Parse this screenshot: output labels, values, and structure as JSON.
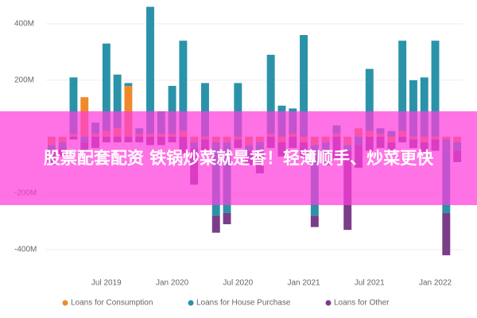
{
  "chart_data": {
    "type": "stacked_bar",
    "categories": [
      null,
      null,
      null,
      null,
      null,
      "Jul 2019",
      null,
      null,
      null,
      null,
      null,
      "Jan 2020",
      null,
      null,
      null,
      null,
      null,
      "Jul 2020",
      null,
      null,
      null,
      null,
      null,
      "Jan 2021",
      null,
      null,
      null,
      null,
      null,
      "Jul 2021",
      null,
      null,
      null,
      null,
      null,
      "Jan 2022",
      null,
      null
    ],
    "series": [
      {
        "name": "Loans for Consumption",
        "color": "#ee8a2c",
        "values": [
          -30,
          -20,
          10,
          140,
          10,
          20,
          30,
          180,
          10,
          10,
          10,
          10,
          20,
          -20,
          -10,
          -20,
          -20,
          -10,
          -30,
          -20,
          10,
          -20,
          10,
          -20,
          -30,
          -20,
          10,
          -30,
          30,
          20,
          10,
          -20,
          20,
          -10,
          -20,
          -10,
          -10,
          -20
        ]
      },
      {
        "name": "Loans for House Purchase",
        "color": "#2a93a9",
        "values": [
          -30,
          -20,
          200,
          -20,
          40,
          310,
          190,
          10,
          20,
          450,
          80,
          170,
          320,
          -20,
          190,
          -260,
          -250,
          190,
          -20,
          -30,
          280,
          110,
          90,
          360,
          -250,
          -30,
          30,
          -20,
          -30,
          220,
          20,
          20,
          320,
          200,
          210,
          340,
          -260,
          -30
        ]
      },
      {
        "name": "Loans for Other",
        "color": "#7a3d87",
        "values": [
          -40,
          -30,
          -10,
          -30,
          -40,
          -20,
          -20,
          -20,
          -20,
          -30,
          -30,
          -20,
          -60,
          -130,
          -40,
          -60,
          -40,
          -30,
          -50,
          -80,
          -40,
          -50,
          -40,
          -50,
          -40,
          -50,
          -80,
          -280,
          -80,
          -50,
          -40,
          -30,
          -20,
          -30,
          -40,
          -40,
          -150,
          -40
        ]
      }
    ],
    "ylim": [
      -445,
      470
    ],
    "yticks": [
      {
        "value": -400,
        "label": "-400M"
      },
      {
        "value": -200,
        "label": "-200M"
      },
      {
        "value": 200,
        "label": "200M"
      },
      {
        "value": 400,
        "label": "400M"
      }
    ],
    "grid": true,
    "legend": "bottom"
  },
  "overlay_text": "股票配套配资 铁锅炒菜就是香！轻薄顺手、炒菜更快"
}
